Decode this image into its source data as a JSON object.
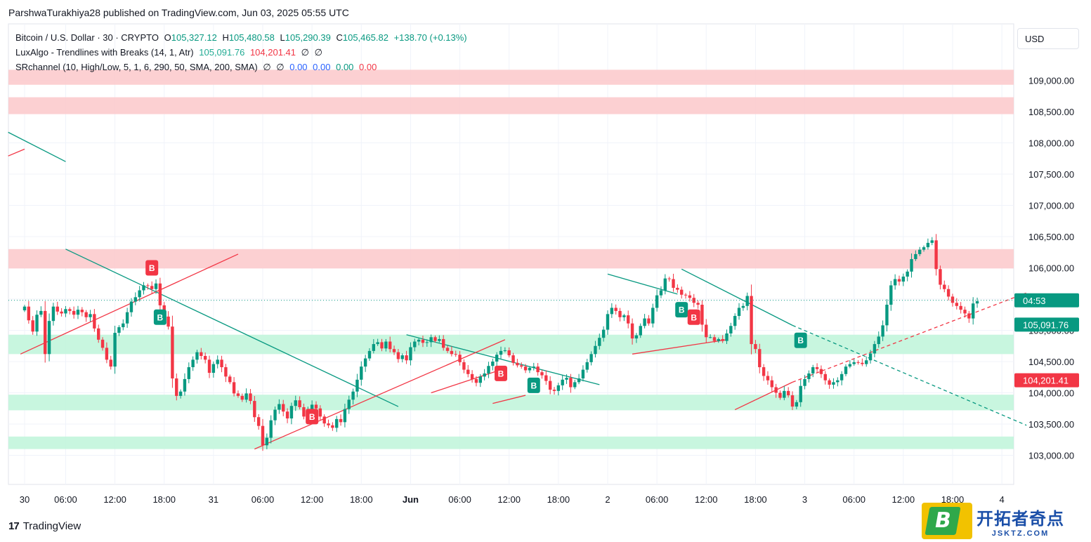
{
  "header": {
    "publisher": "ParshwaTurakhiya28 published on TradingView.com, Jun 03, 2025 05:55 UTC"
  },
  "legend": {
    "line1": {
      "symbol": "Bitcoin / U.S. Dollar · 30 · CRYPTO",
      "o_label": "O",
      "o": "105,327.12",
      "h_label": "H",
      "h": "105,480.58",
      "l_label": "L",
      "l": "105,290.39",
      "c_label": "C",
      "c": "105,465.82",
      "change": "+138.70 (+0.13%)"
    },
    "line2": {
      "name": "LuxAlgo - Trendlines with Breaks (14, 1, Atr)",
      "v1": "105,091.76",
      "v2": "104,201.41",
      "v3": "∅",
      "v4": "∅"
    },
    "line3": {
      "name": "SRchannel (10, High/Low, 5, 1, 6, 290, 50, SMA, 200, SMA)",
      "v1": "∅",
      "v2": "∅",
      "v3": "0.00",
      "v4": "0.00",
      "v5": "0.00",
      "v6": "0.00"
    }
  },
  "currency": "USD",
  "footer": {
    "brand": "TradingView",
    "logo": "17"
  },
  "watermark": {
    "cn": "开拓者奇点",
    "domain": "JSKTZ.COM",
    "letter": "B"
  },
  "chart_data": {
    "type": "candlestick",
    "symbol": "Bitcoin / U.S. Dollar",
    "interval": "30",
    "ylim": [
      102600,
      109600
    ],
    "y_ticks": [
      "109,000.00",
      "108,500.00",
      "108,000.00",
      "107,500.00",
      "107,000.00",
      "106,500.00",
      "106,000.00",
      "105,500.00",
      "105,000.00",
      "104,500.00",
      "104,000.00",
      "103,500.00",
      "103,000.00"
    ],
    "y_tick_values": [
      109000,
      108500,
      108000,
      107500,
      107000,
      106500,
      106000,
      105500,
      105000,
      104500,
      104000,
      103500,
      103000
    ],
    "x_ticks": [
      {
        "t": 0,
        "label": "30"
      },
      {
        "t": 10,
        "label": "06:00"
      },
      {
        "t": 22,
        "label": "12:00"
      },
      {
        "t": 34,
        "label": "18:00"
      },
      {
        "t": 46,
        "label": "31"
      },
      {
        "t": 58,
        "label": "06:00"
      },
      {
        "t": 70,
        "label": "12:00"
      },
      {
        "t": 82,
        "label": "18:00"
      },
      {
        "t": 94,
        "label": "Jun"
      },
      {
        "t": 106,
        "label": "06:00"
      },
      {
        "t": 118,
        "label": "12:00"
      },
      {
        "t": 130,
        "label": "18:00"
      },
      {
        "t": 142,
        "label": "2"
      },
      {
        "t": 154,
        "label": "06:00"
      },
      {
        "t": 166,
        "label": "12:00"
      },
      {
        "t": 178,
        "label": "18:00"
      },
      {
        "t": 190,
        "label": "3"
      },
      {
        "t": 202,
        "label": "06:00"
      },
      {
        "t": 214,
        "label": "12:00"
      },
      {
        "t": 226,
        "label": "18:00"
      },
      {
        "t": 238,
        "label": "4"
      }
    ],
    "price_line": 105480,
    "badges": [
      {
        "label": "04:53",
        "value": 105480,
        "color": "#089981"
      },
      {
        "label": "105,091.76",
        "value": 105091.76,
        "color": "#089981"
      },
      {
        "label": "104,201.41",
        "value": 104201.41,
        "color": "#f23645"
      }
    ],
    "zones": [
      {
        "from": 108930,
        "to": 109170,
        "color": "#fccbcd"
      },
      {
        "from": 108460,
        "to": 108730,
        "color": "#fccbcd"
      },
      {
        "from": 105990,
        "to": 106300,
        "color": "#fccbcd"
      },
      {
        "from": 104620,
        "to": 104930,
        "color": "#c2f5dc"
      },
      {
        "from": 103720,
        "to": 103970,
        "color": "#c2f5dc"
      },
      {
        "from": 103100,
        "to": 103300,
        "color": "#c2f5dc"
      }
    ],
    "trendlines": [
      {
        "t1": -4,
        "p1": 108170,
        "t2": 10,
        "p2": 107700,
        "color": "#089981",
        "dash": false
      },
      {
        "t1": -4,
        "p1": 107790,
        "t2": 0,
        "p2": 107900,
        "color": "#f23645",
        "dash": false
      },
      {
        "t1": 10,
        "p1": 106300,
        "t2": 91,
        "p2": 103780,
        "color": "#089981",
        "dash": false
      },
      {
        "t1": -1,
        "p1": 104620,
        "t2": 52,
        "p2": 106220,
        "color": "#f23645",
        "dash": false
      },
      {
        "t1": 93,
        "p1": 104930,
        "t2": 140,
        "p2": 104130,
        "color": "#089981",
        "dash": false
      },
      {
        "t1": 56,
        "p1": 103100,
        "t2": 117,
        "p2": 104850,
        "color": "#f23645",
        "dash": false
      },
      {
        "t1": 99,
        "p1": 104000,
        "t2": 117,
        "p2": 104390,
        "color": "#f23645",
        "dash": false
      },
      {
        "t1": 114,
        "p1": 103830,
        "t2": 122,
        "p2": 103960,
        "color": "#f23645",
        "dash": false
      },
      {
        "t1": 142,
        "p1": 105900,
        "t2": 159,
        "p2": 105580,
        "color": "#089981",
        "dash": false
      },
      {
        "t1": 160,
        "p1": 105980,
        "t2": 187,
        "p2": 105080,
        "color": "#089981",
        "dash": false
      },
      {
        "t1": 187,
        "p1": 105080,
        "t2": 244,
        "p2": 103480,
        "color": "#089981",
        "dash": true
      },
      {
        "t1": 148,
        "p1": 104620,
        "t2": 171,
        "p2": 104850,
        "color": "#f23645",
        "dash": false
      },
      {
        "t1": 173,
        "p1": 103730,
        "t2": 187,
        "p2": 104170,
        "color": "#f23645",
        "dash": false
      },
      {
        "t1": 187,
        "p1": 104170,
        "t2": 244,
        "p2": 105600,
        "color": "#f23645",
        "dash": true
      }
    ],
    "signals": [
      {
        "t": 31,
        "label": "B",
        "color": "#f23645",
        "value": 106000
      },
      {
        "t": 33,
        "label": "B",
        "color": "#089981",
        "value": 105210
      },
      {
        "t": 70,
        "label": "B",
        "color": "#f23645",
        "value": 103620
      },
      {
        "t": 116,
        "label": "B",
        "color": "#f23645",
        "value": 104310
      },
      {
        "t": 124,
        "label": "B",
        "color": "#089981",
        "value": 104120
      },
      {
        "t": 160,
        "label": "B",
        "color": "#089981",
        "value": 105330
      },
      {
        "t": 163,
        "label": "B",
        "color": "#f23645",
        "value": 105210
      },
      {
        "t": 189,
        "label": "B",
        "color": "#089981",
        "value": 104840
      }
    ],
    "closes": [
      105380,
      105160,
      104980,
      105250,
      105310,
      104620,
      105150,
      105380,
      105300,
      105270,
      105340,
      105310,
      105250,
      105330,
      105290,
      105210,
      105260,
      105030,
      104850,
      104720,
      104530,
      104420,
      104960,
      105050,
      105110,
      105290,
      105460,
      105530,
      105640,
      105720,
      105710,
      105660,
      105750,
      105400,
      105220,
      105060,
      104230,
      103950,
      104020,
      104220,
      104410,
      104530,
      104650,
      104590,
      104530,
      104320,
      104460,
      104530,
      104410,
      104260,
      104170,
      103990,
      103950,
      103890,
      103990,
      103870,
      103610,
      103470,
      103160,
      103280,
      103560,
      103730,
      103820,
      103700,
      103590,
      103790,
      103880,
      103770,
      103620,
      103740,
      103810,
      103750,
      103620,
      103510,
      103480,
      103440,
      103580,
      103530,
      103740,
      103890,
      104020,
      104210,
      104420,
      104550,
      104670,
      104780,
      104810,
      104710,
      104820,
      104700,
      104650,
      104540,
      104600,
      104520,
      104730,
      104820,
      104850,
      104800,
      104810,
      104890,
      104830,
      104860,
      104720,
      104670,
      104620,
      104610,
      104490,
      104370,
      104300,
      104220,
      104160,
      104260,
      104310,
      104430,
      104500,
      104610,
      104670,
      104680,
      104600,
      104480,
      104440,
      104420,
      104360,
      104400,
      104420,
      104330,
      104280,
      104190,
      104050,
      104030,
      104120,
      104210,
      104240,
      104090,
      104170,
      104230,
      104370,
      104490,
      104620,
      104750,
      104880,
      105010,
      105260,
      105360,
      105310,
      105210,
      105240,
      105110,
      104870,
      104920,
      105070,
      105190,
      105110,
      105360,
      105560,
      105640,
      105830,
      105820,
      105680,
      105650,
      105570,
      105560,
      105520,
      105440,
      105410,
      105090,
      104890,
      104890,
      104830,
      104860,
      104830,
      104950,
      105070,
      105230,
      105360,
      105390,
      105550,
      104780,
      104700,
      104410,
      104270,
      104200,
      104090,
      104000,
      103920,
      104030,
      103960,
      103780,
      103850,
      104110,
      104220,
      104310,
      104410,
      104380,
      104300,
      104200,
      104130,
      104170,
      104200,
      104300,
      104420,
      104460,
      104490,
      104480,
      104460,
      104520,
      104630,
      104780,
      104900,
      105080,
      105410,
      105720,
      105820,
      105780,
      105860,
      105940,
      106140,
      106220,
      106290,
      106330,
      106400,
      106440,
      105980,
      105730,
      105660,
      105540,
      105440,
      105390,
      105330,
      105270,
      105190,
      105430,
      105465.82
    ]
  }
}
